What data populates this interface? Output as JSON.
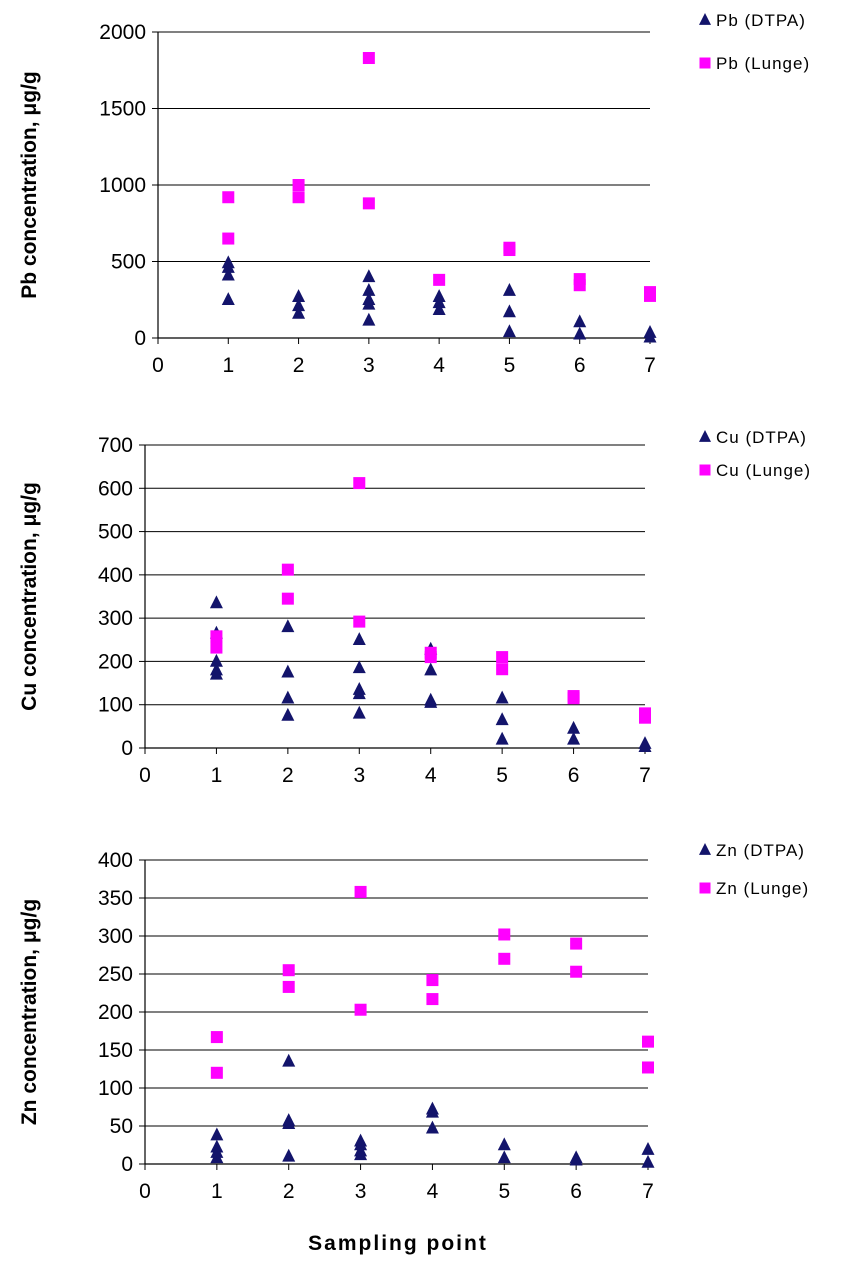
{
  "colors": {
    "dtpa": "#13146b",
    "lunge": "#ff00ff",
    "grid": "#000000"
  },
  "shared_xlabel": "Sampling point",
  "chart_data": [
    {
      "type": "scatter",
      "ylabel": "Pb concentration, μg/g",
      "xlim": [
        0,
        7
      ],
      "ylim": [
        0,
        2000
      ],
      "xticks": [
        "0",
        "1",
        "2",
        "3",
        "4",
        "5",
        "6",
        "7"
      ],
      "yticks": [
        "0",
        "500",
        "1000",
        "1500",
        "2000"
      ],
      "ytick_values": [
        0,
        500,
        1000,
        1500,
        2000
      ],
      "legend_position": "right",
      "series": [
        {
          "name": "Pb (DTPA)",
          "marker": "triangle",
          "points": [
            [
              1,
              490
            ],
            [
              1,
              460
            ],
            [
              1,
              410
            ],
            [
              1,
              250
            ],
            [
              2,
              270
            ],
            [
              2,
              210
            ],
            [
              2,
              160
            ],
            [
              3,
              400
            ],
            [
              3,
              310
            ],
            [
              3,
              250
            ],
            [
              3,
              220
            ],
            [
              3,
              115
            ],
            [
              4,
              270
            ],
            [
              4,
              230
            ],
            [
              4,
              185
            ],
            [
              5,
              310
            ],
            [
              5,
              170
            ],
            [
              5,
              40
            ],
            [
              6,
              105
            ],
            [
              6,
              25
            ],
            [
              7,
              35
            ],
            [
              7,
              5
            ]
          ]
        },
        {
          "name": "Pb (Lunge)",
          "marker": "square",
          "points": [
            [
              1,
              920
            ],
            [
              1,
              650
            ],
            [
              2,
              1000
            ],
            [
              2,
              920
            ],
            [
              3,
              1830
            ],
            [
              3,
              880
            ],
            [
              4,
              380
            ],
            [
              5,
              590
            ],
            [
              5,
              575
            ],
            [
              6,
              385
            ],
            [
              6,
              345
            ],
            [
              7,
              300
            ],
            [
              7,
              275
            ]
          ]
        }
      ]
    },
    {
      "type": "scatter",
      "ylabel": "Cu concentration, μg/g",
      "xlim": [
        0,
        7
      ],
      "ylim": [
        0,
        700
      ],
      "xticks": [
        "0",
        "1",
        "2",
        "3",
        "4",
        "5",
        "6",
        "7"
      ],
      "yticks": [
        "0",
        "100",
        "200",
        "300",
        "400",
        "500",
        "600",
        "700"
      ],
      "ytick_values": [
        0,
        100,
        200,
        300,
        400,
        500,
        600,
        700
      ],
      "legend_position": "right",
      "series": [
        {
          "name": "Cu (DTPA)",
          "marker": "triangle",
          "points": [
            [
              1,
              335
            ],
            [
              1,
              265
            ],
            [
              1,
              200
            ],
            [
              1,
              180
            ],
            [
              1,
              170
            ],
            [
              2,
              280
            ],
            [
              2,
              175
            ],
            [
              2,
              115
            ],
            [
              2,
              75
            ],
            [
              3,
              250
            ],
            [
              3,
              185
            ],
            [
              3,
              135
            ],
            [
              3,
              125
            ],
            [
              3,
              80
            ],
            [
              4,
              228
            ],
            [
              4,
              180
            ],
            [
              4,
              110
            ],
            [
              4,
              105
            ],
            [
              5,
              115
            ],
            [
              5,
              65
            ],
            [
              5,
              20
            ],
            [
              6,
              45
            ],
            [
              6,
              20
            ],
            [
              7,
              10
            ],
            [
              7,
              3
            ]
          ]
        },
        {
          "name": "Cu (Lunge)",
          "marker": "square",
          "points": [
            [
              1,
              258
            ],
            [
              1,
              232
            ],
            [
              2,
              412
            ],
            [
              2,
              345
            ],
            [
              3,
              612
            ],
            [
              3,
              292
            ],
            [
              4,
              220
            ],
            [
              4,
              210
            ],
            [
              5,
              210
            ],
            [
              5,
              182
            ],
            [
              6,
              120
            ],
            [
              6,
              115
            ],
            [
              7,
              80
            ],
            [
              7,
              70
            ]
          ]
        }
      ]
    },
    {
      "type": "scatter",
      "ylabel": "Zn concentration, μg/g",
      "xlim": [
        0,
        7
      ],
      "ylim": [
        0,
        400
      ],
      "xticks": [
        "0",
        "1",
        "2",
        "3",
        "4",
        "5",
        "6",
        "7"
      ],
      "yticks": [
        "0",
        "50",
        "100",
        "150",
        "200",
        "250",
        "300",
        "350",
        "400"
      ],
      "ytick_values": [
        0,
        50,
        100,
        150,
        200,
        250,
        300,
        350,
        400
      ],
      "legend_position": "right",
      "series": [
        {
          "name": "Zn (DTPA)",
          "marker": "triangle",
          "points": [
            [
              1,
              38
            ],
            [
              1,
              22
            ],
            [
              1,
              15
            ],
            [
              1,
              8
            ],
            [
              2,
              135
            ],
            [
              2,
              57
            ],
            [
              2,
              53
            ],
            [
              2,
              10
            ],
            [
              3,
              30
            ],
            [
              3,
              25
            ],
            [
              3,
              17
            ],
            [
              3,
              12
            ],
            [
              4,
              72
            ],
            [
              4,
              68
            ],
            [
              4,
              47
            ],
            [
              5,
              25
            ],
            [
              5,
              8
            ],
            [
              6,
              8
            ],
            [
              6,
              5
            ],
            [
              7,
              19
            ],
            [
              7,
              2
            ]
          ]
        },
        {
          "name": "Zn (Lunge)",
          "marker": "square",
          "points": [
            [
              1,
              167
            ],
            [
              1,
              120
            ],
            [
              2,
              255
            ],
            [
              2,
              233
            ],
            [
              3,
              358
            ],
            [
              3,
              203
            ],
            [
              4,
              242
            ],
            [
              4,
              217
            ],
            [
              5,
              302
            ],
            [
              5,
              270
            ],
            [
              6,
              290
            ],
            [
              6,
              253
            ],
            [
              7,
              161
            ],
            [
              7,
              127
            ]
          ]
        }
      ]
    }
  ]
}
